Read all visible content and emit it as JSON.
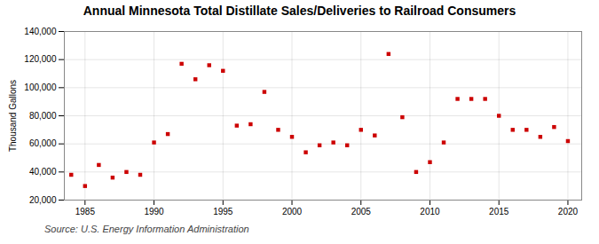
{
  "chart_data": {
    "type": "scatter",
    "title": "Annual Minnesota Total Distillate Sales/Deliveries to Railroad Consumers",
    "ylabel": "Thousand Gallons",
    "caption": "Source: U.S. Energy Information Administration",
    "x": [
      1984,
      1985,
      1986,
      1987,
      1988,
      1989,
      1990,
      1991,
      1992,
      1993,
      1994,
      1995,
      1996,
      1997,
      1998,
      1999,
      2000,
      2001,
      2002,
      2003,
      2004,
      2005,
      2006,
      2007,
      2008,
      2009,
      2010,
      2011,
      2012,
      2013,
      2014,
      2015,
      2016,
      2017,
      2018,
      2019,
      2020
    ],
    "values": [
      38000,
      30000,
      45000,
      36000,
      40000,
      38000,
      61000,
      67000,
      117000,
      106000,
      116000,
      112000,
      73000,
      74000,
      97000,
      70000,
      65000,
      54000,
      59000,
      61000,
      59000,
      70000,
      66000,
      124000,
      79000,
      40000,
      47000,
      61000,
      92000,
      92000,
      92000,
      80000,
      70000,
      70000,
      65000,
      72000,
      62000
    ],
    "color": "#cc0000",
    "marker": "square",
    "grid": true,
    "xlim": [
      1983.5,
      2021
    ],
    "xticks": [
      1985,
      1990,
      1995,
      2000,
      2005,
      2010,
      2015,
      2020
    ],
    "ylim": [
      20000,
      140000
    ],
    "yticks": [
      {
        "value": 20000,
        "label": "20,000"
      },
      {
        "value": 40000,
        "label": "40,000"
      },
      {
        "value": 60000,
        "label": "60,000"
      },
      {
        "value": 80000,
        "label": "80,000"
      },
      {
        "value": 100000,
        "label": "100,000"
      },
      {
        "value": 120000,
        "label": "120,000"
      },
      {
        "value": 140000,
        "label": "140,000"
      }
    ]
  }
}
